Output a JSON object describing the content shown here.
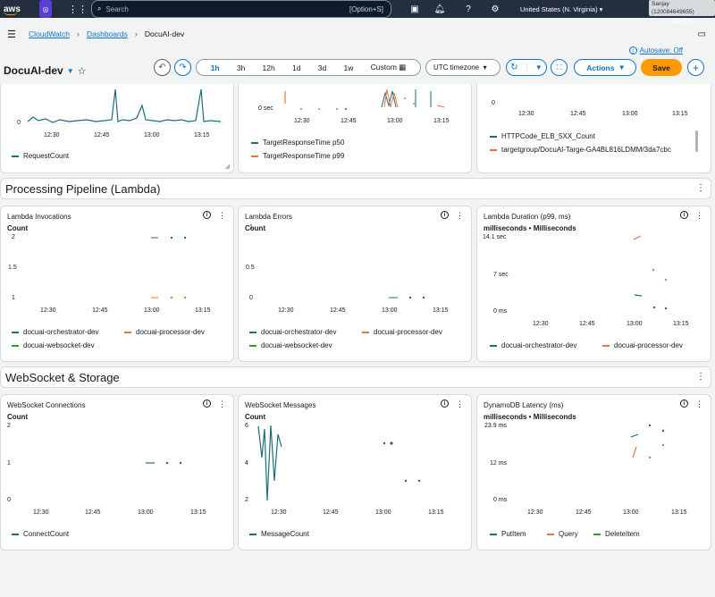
{
  "topbar": {
    "logo": "aws",
    "search_placeholder": "Search",
    "search_shortcut": "[Option+S]",
    "region": "United States (N. Virginia)",
    "account": "Sanjay (120084649655)",
    "user": "Sanjay"
  },
  "breadcrumb": {
    "items": [
      "CloudWatch",
      "Dashboards",
      "DocuAI-dev"
    ]
  },
  "autosave": "Autosave: Off",
  "dashboard": {
    "title": "DocuAI-dev",
    "time_ranges": [
      "1h",
      "3h",
      "12h",
      "1d",
      "3d",
      "1w"
    ],
    "selected_range": "1h",
    "custom_label": "Custom",
    "timezone": "UTC timezone",
    "actions_label": "Actions",
    "save_label": "Save"
  },
  "top_row": {
    "p1": {
      "ylabels": [
        "0"
      ],
      "xlabels": [
        "12:30",
        "12:45",
        "13:00",
        "13:15"
      ],
      "legend": [
        {
          "name": "RequestCount",
          "color": "#1b6e78"
        }
      ]
    },
    "p2": {
      "ylabels": [
        "0 sec"
      ],
      "xlabels": [
        "12:30",
        "12:45",
        "13:00",
        "13:15"
      ],
      "legend": [
        {
          "name": "TargetResponseTime p50",
          "color": "#1b6e78"
        },
        {
          "name": "TargetResponseTime p99",
          "color": "#e07941"
        }
      ]
    },
    "p3": {
      "ylabels": [
        "0"
      ],
      "xlabels": [
        "12:30",
        "12:45",
        "13:00",
        "13:15"
      ],
      "legend": [
        {
          "name": "HTTPCode_ELB_5XX_Count",
          "color": "#1b6e78"
        },
        {
          "name": "targetgroup/DocuAI-Targe-GA4BL816LDMM/3da7cbc",
          "color": "#e07941"
        }
      ]
    }
  },
  "sections": {
    "processing": "Processing Pipeline (Lambda)",
    "websocket": "WebSocket & Storage"
  },
  "panels": {
    "lambda_invocations": {
      "title": "Lambda Invocations",
      "unit": "Count",
      "ylabels": [
        "2",
        "1.5",
        "1"
      ],
      "xlabels": [
        "12:30",
        "12:45",
        "13:00",
        "13:15"
      ],
      "legend": [
        {
          "name": "docuai-orchestrator-dev",
          "color": "#1b6e78"
        },
        {
          "name": "docuai-processor-dev",
          "color": "#e07941"
        },
        {
          "name": "docuai-websocket-dev",
          "color": "#2ca02c"
        }
      ]
    },
    "lambda_errors": {
      "title": "Lambda Errors",
      "unit": "Count",
      "ylabels": [
        "1",
        "0.5",
        "0"
      ],
      "xlabels": [
        "12:30",
        "12:45",
        "13:00",
        "13:15"
      ],
      "legend": [
        {
          "name": "docuai-orchestrator-dev",
          "color": "#1b6e78"
        },
        {
          "name": "docuai-processor-dev",
          "color": "#e07941"
        },
        {
          "name": "docuai-websocket-dev",
          "color": "#2ca02c"
        }
      ]
    },
    "lambda_duration": {
      "title": "Lambda Duration (p99, ms)",
      "unit": "milliseconds • Milliseconds",
      "ylabels": [
        "14.1 sec",
        "7 sec",
        "0 ms"
      ],
      "xlabels": [
        "12:30",
        "12:45",
        "13:00",
        "13:15"
      ],
      "legend": [
        {
          "name": "docuai-orchestrator-dev",
          "color": "#1b6e78"
        },
        {
          "name": "docuai-processor-dev",
          "color": "#e07941"
        }
      ]
    },
    "ws_connections": {
      "title": "WebSocket Connections",
      "unit": "Count",
      "ylabels": [
        "2",
        "1",
        "0"
      ],
      "xlabels": [
        "12:30",
        "12:45",
        "13:00",
        "13:15"
      ],
      "legend": [
        {
          "name": "ConnectCount",
          "color": "#1b6e78"
        }
      ]
    },
    "ws_messages": {
      "title": "WebSocket Messages",
      "unit": "Count",
      "ylabels": [
        "6",
        "4",
        "2"
      ],
      "xlabels": [
        "12:30",
        "12:45",
        "13:00",
        "13:15"
      ],
      "legend": [
        {
          "name": "MessageCount",
          "color": "#1b6e78"
        }
      ]
    },
    "dynamo_latency": {
      "title": "DynamoDB Latency (ms)",
      "unit": "milliseconds • Milliseconds",
      "ylabels": [
        "23.9 ms",
        "12 ms",
        "0 ms"
      ],
      "xlabels": [
        "12:30",
        "12:45",
        "13:00",
        "13:15"
      ],
      "legend": [
        {
          "name": "PutItem",
          "color": "#1b6e78"
        },
        {
          "name": "Query",
          "color": "#e07941"
        },
        {
          "name": "DeleteItem",
          "color": "#2ca02c"
        }
      ]
    }
  }
}
